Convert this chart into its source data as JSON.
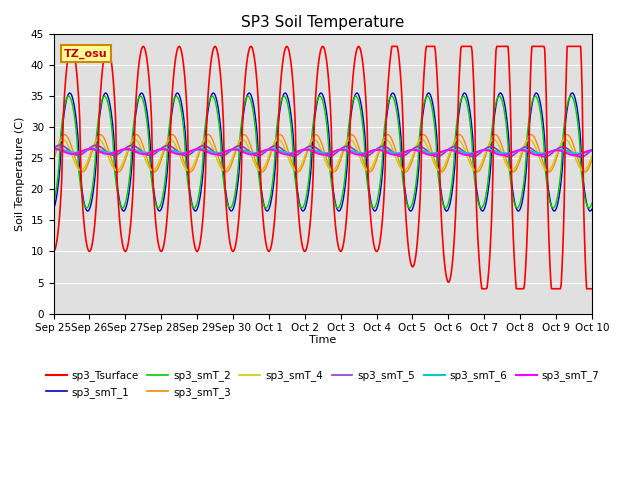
{
  "title": "SP3 Soil Temperature",
  "ylabel": "Soil Temperature (C)",
  "xlabel": "Time",
  "annotation": "TZ_osu",
  "ylim": [
    0,
    45
  ],
  "background_color": "#e0e0e0",
  "x_labels": [
    "Sep 25",
    "Sep 26",
    "Sep 27",
    "Sep 28",
    "Sep 29",
    "Sep 30",
    "Oct 1",
    "Oct 2",
    "Oct 3",
    "Oct 4",
    "Oct 5",
    "Oct 6",
    "Oct 7",
    "Oct 8",
    "Oct 9",
    "Oct 10"
  ],
  "series": {
    "sp3_Tsurface": {
      "color": "#ff0000",
      "lw": 1.2
    },
    "sp3_smT_1": {
      "color": "#0000cc",
      "lw": 1.0
    },
    "sp3_smT_2": {
      "color": "#00cc00",
      "lw": 1.0
    },
    "sp3_smT_3": {
      "color": "#ff8800",
      "lw": 1.0
    },
    "sp3_smT_4": {
      "color": "#cccc00",
      "lw": 1.0
    },
    "sp3_smT_5": {
      "color": "#9933cc",
      "lw": 1.2
    },
    "sp3_smT_6": {
      "color": "#00cccc",
      "lw": 1.5
    },
    "sp3_smT_7": {
      "color": "#ff00ff",
      "lw": 1.5
    }
  }
}
